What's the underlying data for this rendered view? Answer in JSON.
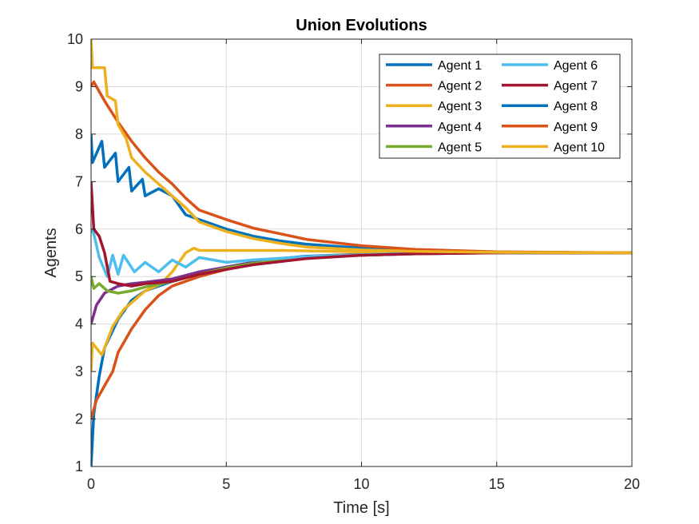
{
  "chart_data": {
    "type": "line",
    "title": "Union Evolutions",
    "xlabel": "Time [s]",
    "ylabel": "Agents",
    "xlim": [
      0,
      20
    ],
    "ylim": [
      1,
      10
    ],
    "xticks": [
      0,
      5,
      10,
      15,
      20
    ],
    "yticks": [
      1,
      2,
      3,
      4,
      5,
      6,
      7,
      8,
      9,
      10
    ],
    "grid": true,
    "legend": {
      "placement": "top-right",
      "columns": 2
    },
    "series": [
      {
        "name": "Agent 1",
        "color": "#0072BD",
        "x": [
          0,
          0.1,
          0.3,
          0.5,
          1.0,
          1.5,
          2.0,
          3.0,
          4.0,
          5.0,
          6.0,
          7.0,
          8.0,
          10.0,
          12.0,
          15.0,
          20.0
        ],
        "y": [
          1.0,
          2.1,
          2.9,
          3.5,
          4.1,
          4.5,
          4.7,
          4.9,
          5.05,
          5.2,
          5.3,
          5.38,
          5.43,
          5.47,
          5.49,
          5.5,
          5.5
        ]
      },
      {
        "name": "Agent 2",
        "color": "#D95319",
        "x": [
          0,
          0.2,
          0.5,
          0.8,
          1.0,
          1.5,
          2.0,
          2.5,
          3.0,
          4.0,
          5.0,
          6.0,
          7.0,
          8.0,
          10.0,
          12.0,
          15.0,
          20.0
        ],
        "y": [
          2.0,
          2.4,
          2.7,
          3.0,
          3.4,
          3.9,
          4.3,
          4.6,
          4.8,
          5.0,
          5.15,
          5.28,
          5.36,
          5.42,
          5.47,
          5.49,
          5.5,
          5.5
        ]
      },
      {
        "name": "Agent 3",
        "color": "#EDB120",
        "x": [
          0,
          0.05,
          0.4,
          0.8,
          1.2,
          1.6,
          2.0,
          2.6,
          3.0,
          3.5,
          3.8,
          4.0,
          5.0,
          6.0,
          7.0,
          8.0,
          10.0,
          12.0,
          15.0,
          20.0
        ],
        "y": [
          3.0,
          3.6,
          3.35,
          3.95,
          4.3,
          4.5,
          4.7,
          4.85,
          5.1,
          5.5,
          5.6,
          5.55,
          5.55,
          5.55,
          5.55,
          5.54,
          5.52,
          5.51,
          5.5,
          5.5
        ]
      },
      {
        "name": "Agent 4",
        "color": "#7E2F8E",
        "x": [
          0,
          0.2,
          0.5,
          1.0,
          1.5,
          2.0,
          3.0,
          4.0,
          5.0,
          6.0,
          8.0,
          10.0,
          12.0,
          15.0,
          20.0
        ],
        "y": [
          4.0,
          4.4,
          4.65,
          4.8,
          4.85,
          4.88,
          4.95,
          5.1,
          5.2,
          5.3,
          5.4,
          5.45,
          5.48,
          5.5,
          5.5
        ]
      },
      {
        "name": "Agent 5",
        "color": "#77AC30",
        "x": [
          0,
          0.1,
          0.3,
          0.6,
          1.0,
          1.5,
          2.0,
          3.0,
          4.0,
          5.0,
          6.0,
          8.0,
          10.0,
          12.0,
          15.0,
          20.0
        ],
        "y": [
          5.0,
          4.75,
          4.85,
          4.7,
          4.65,
          4.7,
          4.78,
          4.9,
          5.05,
          5.18,
          5.28,
          5.4,
          5.45,
          5.48,
          5.5,
          5.5
        ]
      },
      {
        "name": "Agent 6",
        "color": "#4DBEEE",
        "x": [
          0,
          0.1,
          0.3,
          0.6,
          0.8,
          1.0,
          1.2,
          1.6,
          2.0,
          2.5,
          3.0,
          3.5,
          4.0,
          5.0,
          6.0,
          8.0,
          10.0,
          12.0,
          15.0,
          20.0
        ],
        "y": [
          6.0,
          5.9,
          5.4,
          5.0,
          5.45,
          5.05,
          5.45,
          5.1,
          5.3,
          5.1,
          5.35,
          5.2,
          5.4,
          5.3,
          5.35,
          5.42,
          5.46,
          5.49,
          5.5,
          5.5
        ]
      },
      {
        "name": "Agent 7",
        "color": "#A2142F",
        "x": [
          0,
          0.1,
          0.3,
          0.5,
          0.7,
          1.0,
          1.5,
          2.0,
          3.0,
          4.0,
          5.0,
          6.0,
          8.0,
          10.0,
          12.0,
          15.0,
          20.0
        ],
        "y": [
          7.0,
          6.0,
          5.85,
          5.5,
          4.9,
          4.85,
          4.8,
          4.85,
          4.9,
          5.05,
          5.15,
          5.25,
          5.38,
          5.45,
          5.48,
          5.5,
          5.5
        ]
      },
      {
        "name": "Agent 8",
        "color": "#0072BD",
        "x": [
          0,
          0.05,
          0.4,
          0.5,
          0.9,
          1.0,
          1.4,
          1.5,
          1.9,
          2.0,
          2.5,
          3.0,
          3.5,
          4.0,
          5.0,
          6.0,
          7.0,
          8.0,
          10.0,
          12.0,
          15.0,
          20.0
        ],
        "y": [
          8.0,
          7.4,
          7.85,
          7.3,
          7.6,
          7.0,
          7.3,
          6.8,
          7.05,
          6.7,
          6.85,
          6.7,
          6.3,
          6.2,
          6.0,
          5.85,
          5.75,
          5.68,
          5.6,
          5.55,
          5.51,
          5.5
        ]
      },
      {
        "name": "Agent 9",
        "color": "#D95319",
        "x": [
          0,
          0.1,
          0.5,
          1.0,
          1.5,
          2.0,
          2.5,
          3.0,
          3.5,
          4.0,
          5.0,
          6.0,
          7.0,
          8.0,
          10.0,
          12.0,
          15.0,
          20.0
        ],
        "y": [
          9.0,
          9.1,
          8.7,
          8.25,
          7.85,
          7.5,
          7.2,
          6.95,
          6.65,
          6.4,
          6.2,
          6.02,
          5.9,
          5.78,
          5.65,
          5.57,
          5.52,
          5.5
        ]
      },
      {
        "name": "Agent 10",
        "color": "#EDB120",
        "x": [
          0,
          0.05,
          0.5,
          0.6,
          0.9,
          1.0,
          1.3,
          1.5,
          2.0,
          2.5,
          3.0,
          3.5,
          4.0,
          5.0,
          6.0,
          7.0,
          8.0,
          10.0,
          12.0,
          15.0,
          20.0
        ],
        "y": [
          10.0,
          9.4,
          9.4,
          8.8,
          8.7,
          8.2,
          7.9,
          7.5,
          7.2,
          6.95,
          6.7,
          6.45,
          6.15,
          5.95,
          5.8,
          5.7,
          5.62,
          5.56,
          5.53,
          5.51,
          5.5
        ]
      }
    ]
  }
}
